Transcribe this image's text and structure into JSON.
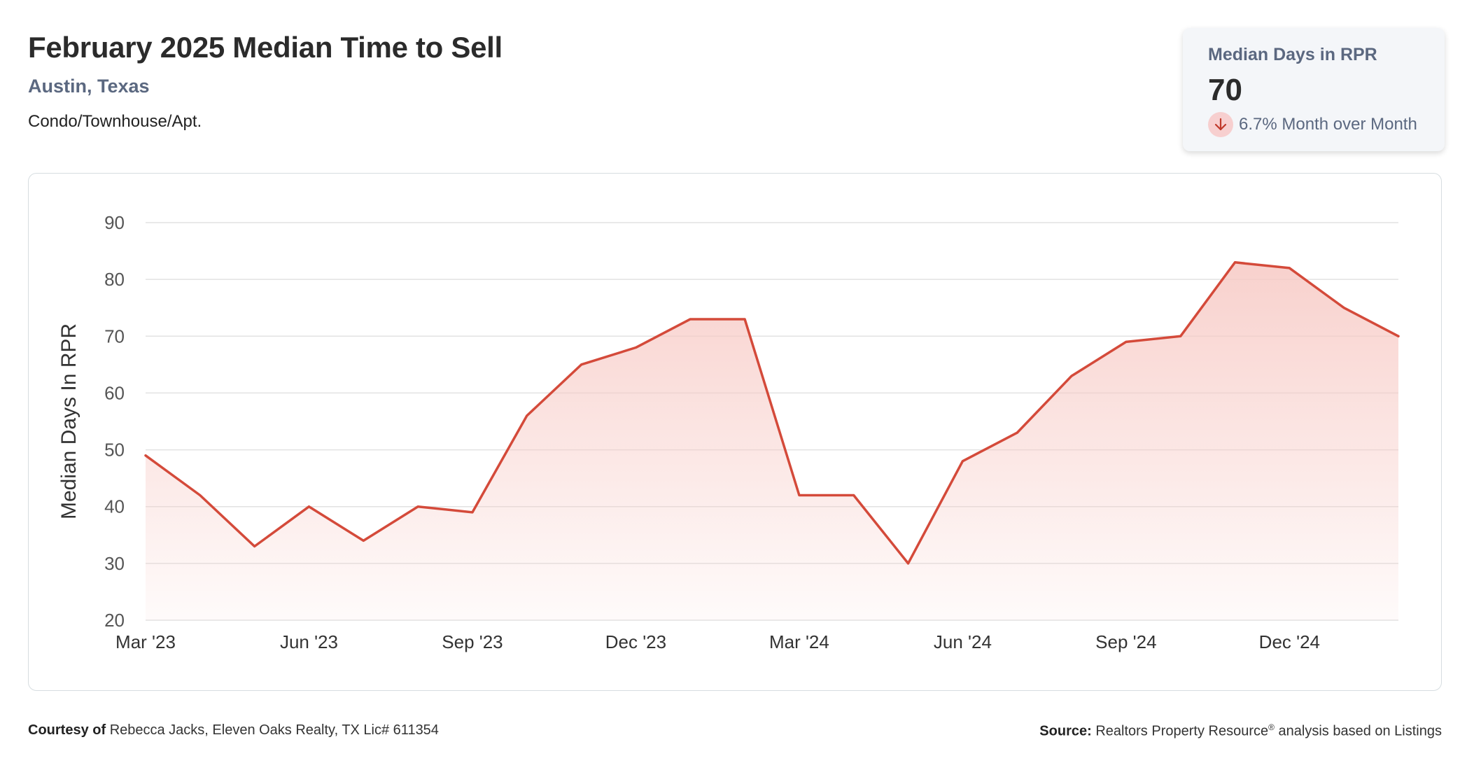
{
  "header": {
    "title": "February 2025 Median Time to Sell",
    "location": "Austin, Texas",
    "property_type": "Condo/Townhouse/Apt."
  },
  "stat_card": {
    "label": "Median Days in RPR",
    "value": "70",
    "change_text": "6.7% Month over Month",
    "change_direction": "down",
    "icon": "arrow-down-icon"
  },
  "footer": {
    "courtesy_label": "Courtesy of",
    "courtesy_text": "Rebecca Jacks, Eleven Oaks Realty, TX Lic# 611354",
    "source_label": "Source:",
    "source_text": "Realtors Property Resource",
    "source_mark": "®",
    "source_suffix": "analysis based on Listings"
  },
  "colors": {
    "line": "#d44a3a",
    "fill": "#f7c9c4",
    "grid": "#e2e2e2",
    "label_muted": "#5b6880"
  },
  "chart_data": {
    "type": "area",
    "ylabel": "Median Days In RPR",
    "ylim": [
      20,
      90
    ],
    "yticks": [
      20,
      30,
      40,
      50,
      60,
      70,
      80,
      90
    ],
    "grid": true,
    "legend": "none",
    "x_tick_labels": [
      "Mar '23",
      "Jun '23",
      "Sep '23",
      "Dec '23",
      "Mar '24",
      "Jun '24",
      "Sep '24",
      "Dec '24"
    ],
    "x": [
      "2023-03",
      "2023-04",
      "2023-05",
      "2023-06",
      "2023-07",
      "2023-08",
      "2023-09",
      "2023-10",
      "2023-11",
      "2023-12",
      "2024-01",
      "2024-02",
      "2024-03",
      "2024-04",
      "2024-05",
      "2024-06",
      "2024-07",
      "2024-08",
      "2024-09",
      "2024-10",
      "2024-11",
      "2024-12",
      "2025-01",
      "2025-02"
    ],
    "values": [
      49,
      42,
      33,
      40,
      34,
      40,
      39,
      56,
      65,
      68,
      73,
      73,
      42,
      42,
      30,
      48,
      53,
      63,
      69,
      70,
      83,
      82,
      75,
      70
    ]
  }
}
